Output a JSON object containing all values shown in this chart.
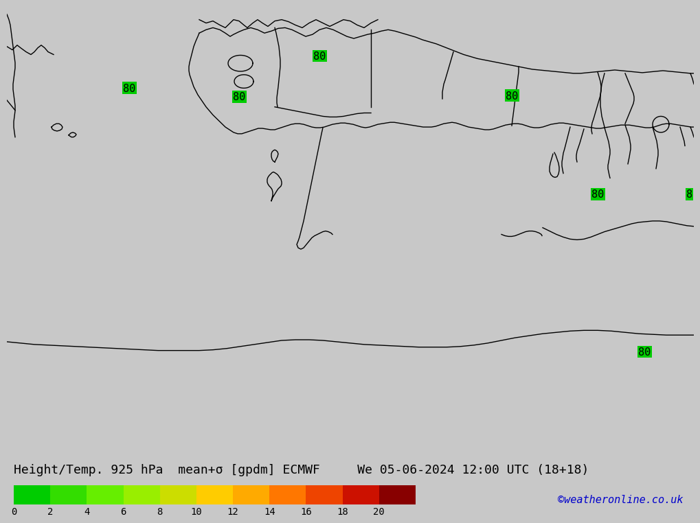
{
  "title_line1": "Height/Temp. 925 hPa mean+σ [gpdm] ECMWF",
  "title_line2": "We 05-06-2024 12:00 UTC (18+18)",
  "watermark": "©weatheronline.co.uk",
  "colorbar_values": [
    0,
    2,
    4,
    6,
    8,
    10,
    12,
    14,
    16,
    18,
    20
  ],
  "colorbar_colors": [
    "#00CC00",
    "#33DD00",
    "#66EE00",
    "#99EE00",
    "#CCDD00",
    "#FFCC00",
    "#FFAA00",
    "#FF7700",
    "#EE4400",
    "#CC1100",
    "#880000"
  ],
  "background_color": "#00CC00",
  "map_line_color": "#000000",
  "bottom_bar_bg": "#C8C8C8",
  "title_color": "#000000",
  "title_fontsize": 13,
  "watermark_color": "#0000CC",
  "watermark_fontsize": 11,
  "fig_bg_color": "#C8C8C8"
}
